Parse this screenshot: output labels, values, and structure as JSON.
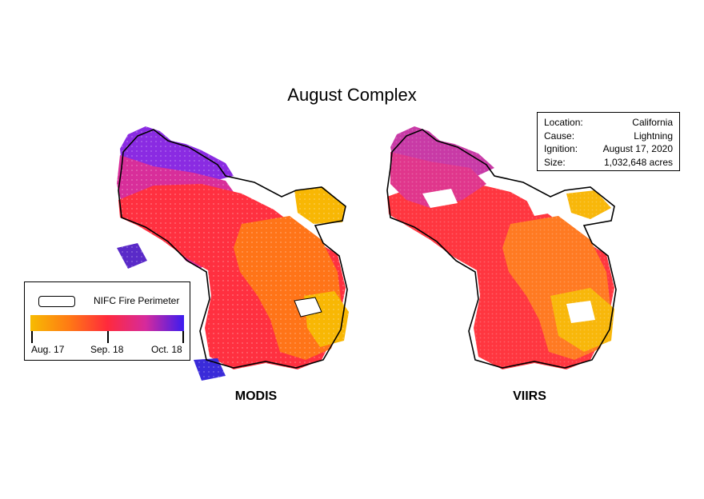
{
  "title": "August Complex",
  "panels": {
    "left": "MODIS",
    "right": "VIIRS"
  },
  "info": [
    {
      "key": "Location:",
      "value": "California"
    },
    {
      "key": "Cause:",
      "value": "Lightning"
    },
    {
      "key": "Ignition:",
      "value": "August 17, 2020"
    },
    {
      "key": "Size:",
      "value": "1,032,648 acres"
    }
  ],
  "legend": {
    "perimeter_label": "NIFC Fire Perimeter",
    "ticks": [
      "Aug. 17",
      "Sep. 18",
      "Oct. 18"
    ]
  },
  "colors": {
    "early": "#f7bb02",
    "orange": "#ff7a14",
    "mid": "#ff2a3c",
    "magenta": "#d62a9c",
    "late": "#3b1cf0",
    "perimeter": "#000000"
  }
}
